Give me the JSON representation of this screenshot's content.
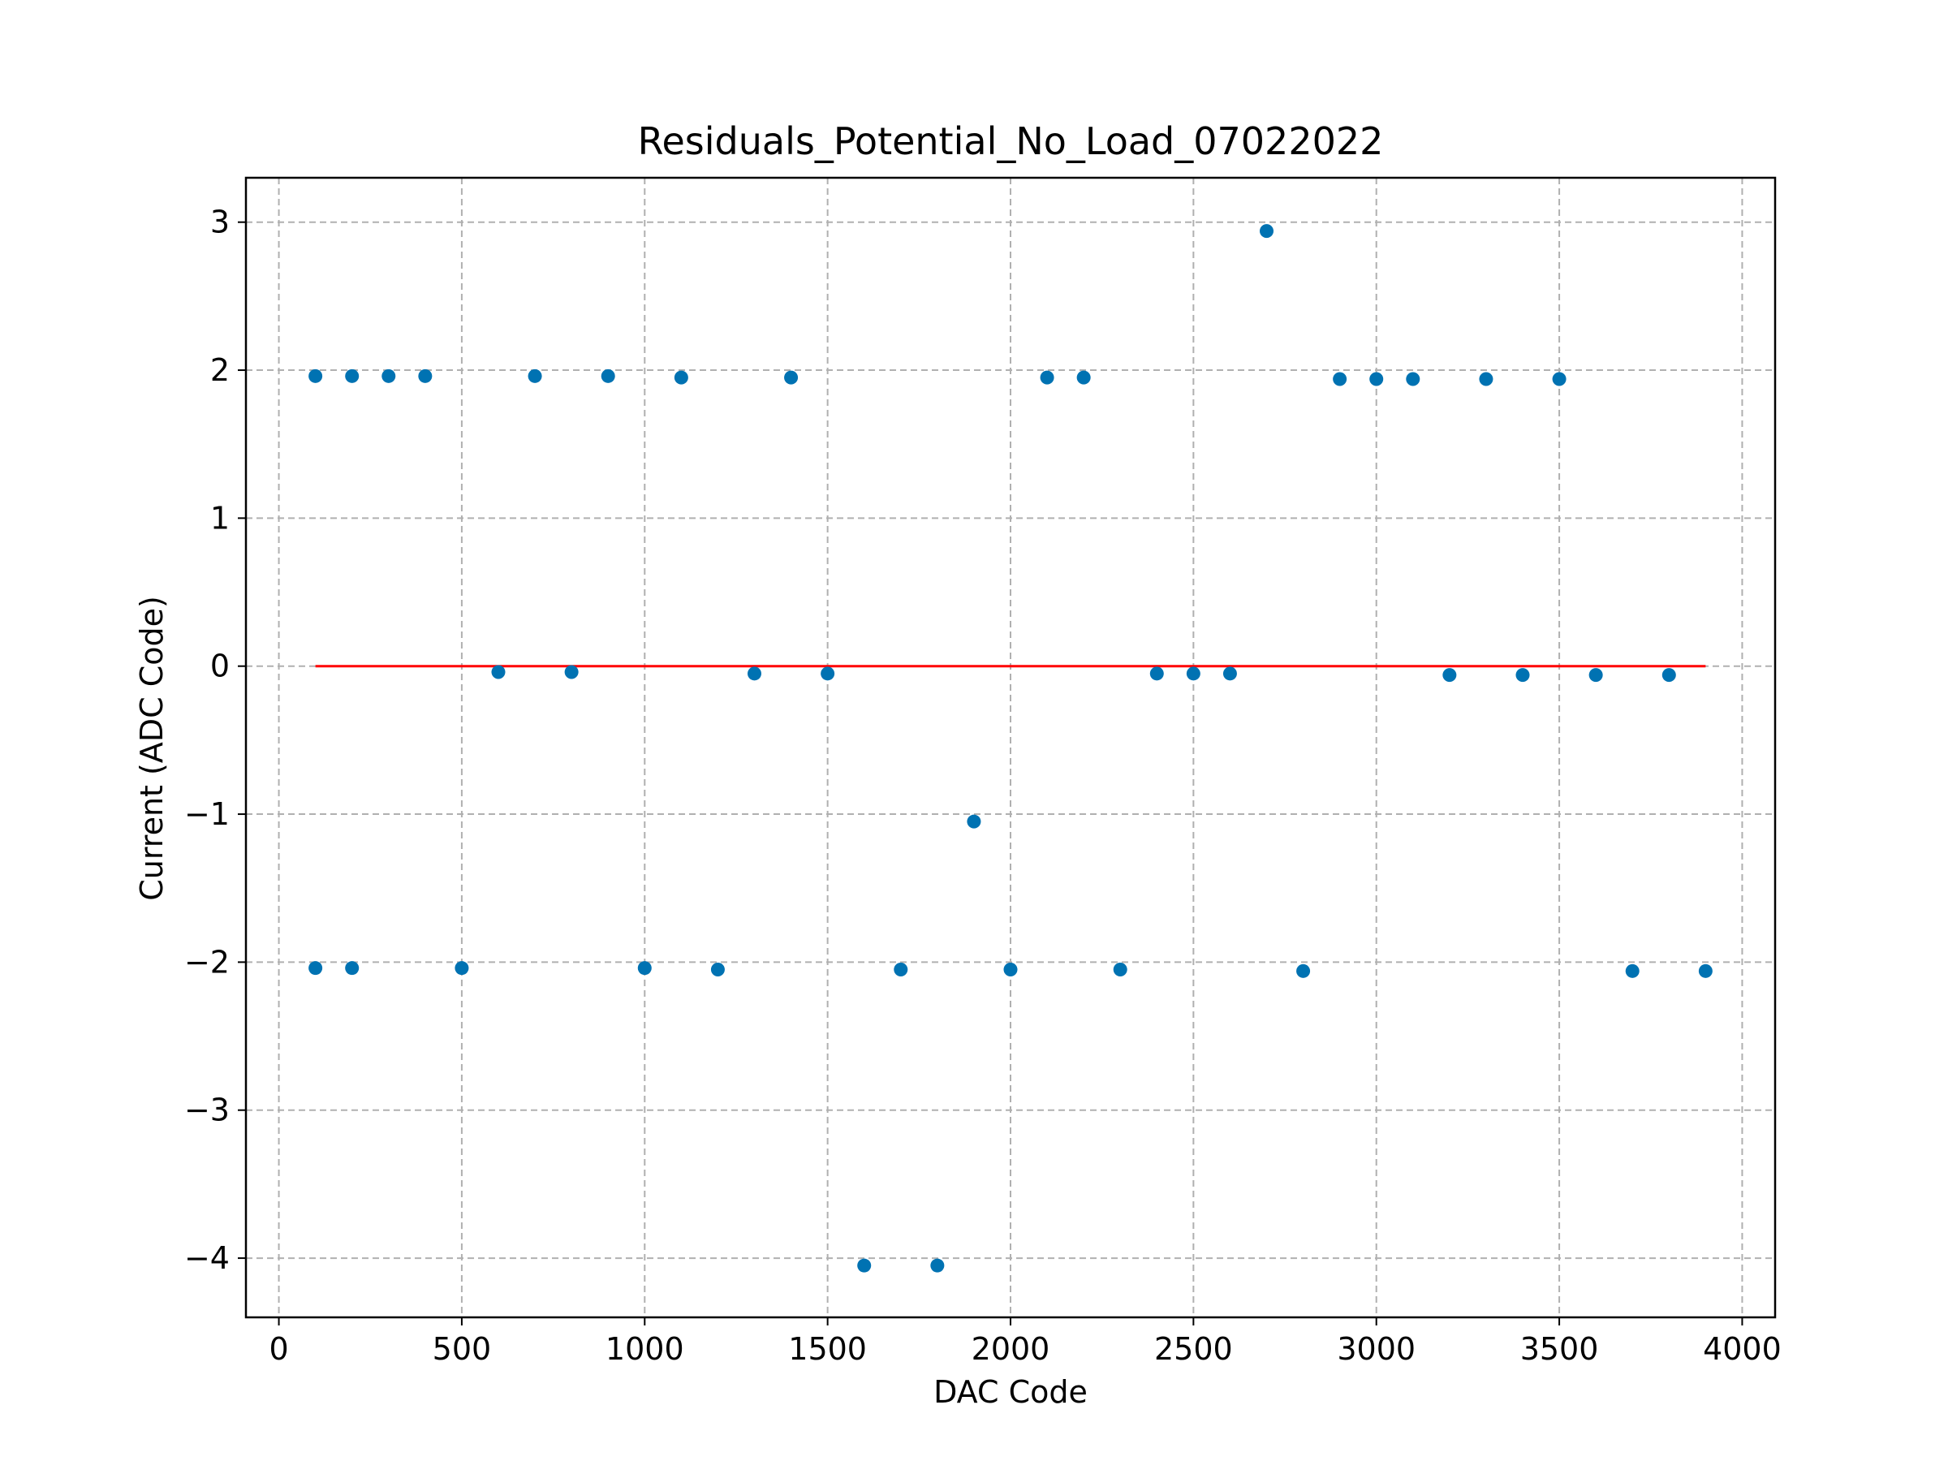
{
  "chart_data": {
    "type": "scatter",
    "title": "Residuals_Potential_No_Load_07022022",
    "xlabel": "DAC Code",
    "ylabel": "Current (ADC Code)",
    "xlim": [
      -90,
      4090
    ],
    "ylim": [
      -4.4,
      3.3
    ],
    "xticks": [
      0,
      500,
      1000,
      1500,
      2000,
      2500,
      3000,
      3500,
      4000
    ],
    "xtick_labels": [
      "0",
      "500",
      "1000",
      "1500",
      "2000",
      "2500",
      "3000",
      "3500",
      "4000"
    ],
    "yticks": [
      3,
      2,
      1,
      0,
      -1,
      -2,
      -3,
      -4
    ],
    "ytick_labels": [
      "3",
      "2",
      "1",
      "0",
      "−1",
      "−2",
      "−3",
      "−4"
    ],
    "grid": true,
    "colors": {
      "points": "#0072b2",
      "zero_line": "#ff0000"
    },
    "zero_line": {
      "x": [
        100,
        3900
      ],
      "y": 0
    },
    "points": [
      {
        "x": 100,
        "y": 1.96
      },
      {
        "x": 100,
        "y": -2.04
      },
      {
        "x": 200,
        "y": 1.96
      },
      {
        "x": 200,
        "y": -2.04
      },
      {
        "x": 300,
        "y": 1.96
      },
      {
        "x": 400,
        "y": 1.96
      },
      {
        "x": 500,
        "y": -2.04
      },
      {
        "x": 600,
        "y": -0.04
      },
      {
        "x": 700,
        "y": 1.96
      },
      {
        "x": 800,
        "y": -0.04
      },
      {
        "x": 900,
        "y": 1.96
      },
      {
        "x": 1000,
        "y": -2.04
      },
      {
        "x": 1100,
        "y": 1.95
      },
      {
        "x": 1200,
        "y": -2.05
      },
      {
        "x": 1300,
        "y": -0.05
      },
      {
        "x": 1400,
        "y": 1.95
      },
      {
        "x": 1500,
        "y": -0.05
      },
      {
        "x": 1600,
        "y": -4.05
      },
      {
        "x": 1700,
        "y": -2.05
      },
      {
        "x": 1800,
        "y": -4.05
      },
      {
        "x": 1900,
        "y": -1.05
      },
      {
        "x": 2000,
        "y": -2.05
      },
      {
        "x": 2100,
        "y": 1.95
      },
      {
        "x": 2200,
        "y": 1.95
      },
      {
        "x": 2300,
        "y": -2.05
      },
      {
        "x": 2400,
        "y": -0.05
      },
      {
        "x": 2500,
        "y": -0.05
      },
      {
        "x": 2600,
        "y": -0.05
      },
      {
        "x": 2700,
        "y": 2.94
      },
      {
        "x": 2800,
        "y": -2.06
      },
      {
        "x": 2900,
        "y": 1.94
      },
      {
        "x": 3000,
        "y": 1.94
      },
      {
        "x": 3100,
        "y": 1.94
      },
      {
        "x": 3200,
        "y": -0.06
      },
      {
        "x": 3300,
        "y": 1.94
      },
      {
        "x": 3400,
        "y": -0.06
      },
      {
        "x": 3500,
        "y": 1.94
      },
      {
        "x": 3600,
        "y": -0.06
      },
      {
        "x": 3700,
        "y": -2.06
      },
      {
        "x": 3800,
        "y": -0.06
      },
      {
        "x": 3900,
        "y": -2.06
      }
    ]
  }
}
